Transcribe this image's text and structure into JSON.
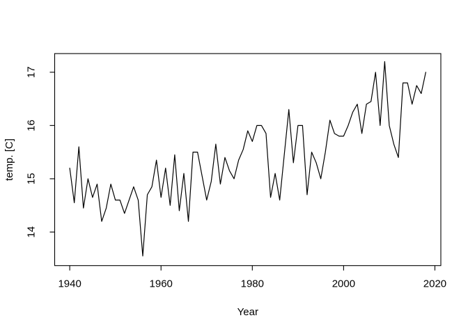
{
  "chart_data": {
    "type": "line",
    "title": "",
    "xlabel": "Year",
    "ylabel": "temp. [C]",
    "x_ticks": [
      1940,
      1960,
      1980,
      2000,
      2020
    ],
    "x_tick_labels": [
      "1940",
      "1960",
      "1980",
      "2000",
      "2020"
    ],
    "y_ticks": [
      14,
      15,
      16,
      17
    ],
    "y_tick_labels": [
      "14",
      "15",
      "16",
      "17"
    ],
    "xlim": [
      1936.7,
      2021.3
    ],
    "ylim": [
      13.37,
      17.35
    ],
    "grid": false,
    "legend": null,
    "line_color": "#000000",
    "background_color": "#ffffff",
    "x": [
      1940,
      1941,
      1942,
      1943,
      1944,
      1945,
      1946,
      1947,
      1948,
      1949,
      1950,
      1951,
      1952,
      1953,
      1954,
      1955,
      1956,
      1957,
      1958,
      1959,
      1960,
      1961,
      1962,
      1963,
      1964,
      1965,
      1966,
      1967,
      1968,
      1969,
      1970,
      1971,
      1972,
      1973,
      1974,
      1975,
      1976,
      1977,
      1978,
      1979,
      1980,
      1981,
      1982,
      1983,
      1984,
      1985,
      1986,
      1987,
      1988,
      1989,
      1990,
      1991,
      1992,
      1993,
      1994,
      1995,
      1996,
      1997,
      1998,
      1999,
      2000,
      2001,
      2002,
      2003,
      2004,
      2005,
      2006,
      2007,
      2008,
      2009,
      2010,
      2011,
      2012,
      2013,
      2014,
      2015,
      2016,
      2017,
      2018
    ],
    "y": [
      15.2,
      14.55,
      15.6,
      14.45,
      15.0,
      14.65,
      14.9,
      14.2,
      14.45,
      14.9,
      14.6,
      14.6,
      14.35,
      14.6,
      14.85,
      14.6,
      13.55,
      14.7,
      14.85,
      15.35,
      14.65,
      15.2,
      14.5,
      15.45,
      14.4,
      15.1,
      14.2,
      15.5,
      15.5,
      15.05,
      14.6,
      14.95,
      15.65,
      14.9,
      15.4,
      15.15,
      15.0,
      15.35,
      15.55,
      15.9,
      15.7,
      16.0,
      16.0,
      15.85,
      14.65,
      15.1,
      14.6,
      15.45,
      16.3,
      15.3,
      16.0,
      16.0,
      14.7,
      15.5,
      15.3,
      15.0,
      15.5,
      16.1,
      15.85,
      15.8,
      15.8,
      16.0,
      16.25,
      16.4,
      15.85,
      16.4,
      16.45,
      17.0,
      16.0,
      17.2,
      16.0,
      15.65,
      15.4,
      16.8,
      16.8,
      16.4,
      16.75,
      16.6,
      17.0
    ]
  }
}
